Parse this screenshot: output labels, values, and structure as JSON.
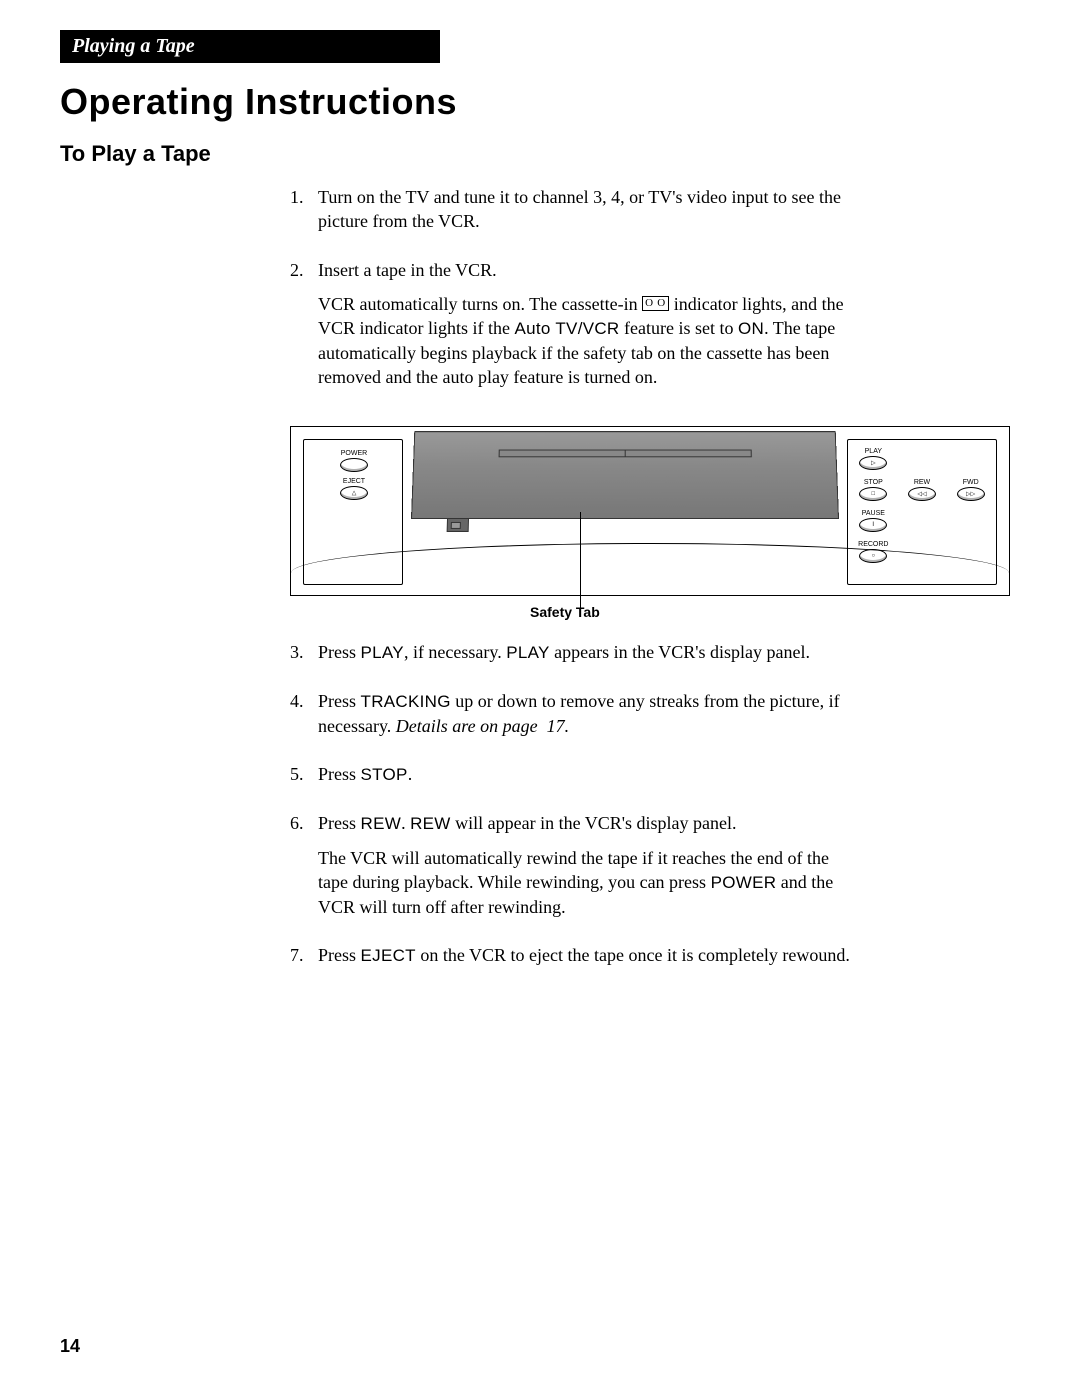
{
  "header": {
    "tab": "Playing a Tape",
    "title": "Operating Instructions",
    "subtitle": "To Play a Tape"
  },
  "steps": [
    {
      "num": "1.",
      "parts": [
        {
          "text": "Turn on the TV and tune it to channel 3, 4, or TV's video input to see the picture from the VCR."
        }
      ]
    },
    {
      "num": "2.",
      "parts": [
        {
          "text": "Insert a tape in the VCR."
        },
        {
          "html": "VCR automatically turns on.  The cassette-in <span class='cassette-icon' data-name='cassette-in-icon' data-interactable='false'>O O</span> indicator lights, and the VCR indicator lights if the <span class='sans'>Auto TV/VCR</span> feature is set to <span class='sans'>ON</span>.  The tape automatically begins playback if the safety tab on the cassette has been removed and the auto play feature is turned on."
        }
      ]
    },
    {
      "num": "3.",
      "parts": [
        {
          "html": "Press <span class='sans'>PLAY</span>, if necessary.  <span class='sans'>PLAY</span> appears in the VCR's display panel."
        }
      ]
    },
    {
      "num": "4.",
      "parts": [
        {
          "html": "Press <span class='sans'>TRACKING</span> up or down to remove any streaks from the picture, if necessary.  <span class='italic'>Details are on page  17.</span>"
        }
      ]
    },
    {
      "num": "5.",
      "parts": [
        {
          "html": "Press <span class='sans'>STOP</span>."
        }
      ]
    },
    {
      "num": "6.",
      "parts": [
        {
          "html": "Press <span class='sans'>REW</span>.  <span class='sans'>REW</span> will appear in the VCR's display panel."
        },
        {
          "html": "The VCR will automatically rewind the tape if it reaches the end of the tape during playback.  While rewinding, you can press <span class='sans'>POWER</span> and the VCR will turn off after rewinding."
        }
      ]
    },
    {
      "num": "7.",
      "parts": [
        {
          "html": "Press <span class='sans'>EJECT</span> on the VCR to eject the tape once it is completely rewound."
        }
      ]
    }
  ],
  "figure": {
    "left_buttons": [
      {
        "label": "POWER",
        "inner": ""
      },
      {
        "label": "EJECT",
        "inner": "△"
      }
    ],
    "right_buttons": [
      [
        {
          "label": "PLAY",
          "inner": "▷"
        },
        null,
        null
      ],
      [
        {
          "label": "STOP",
          "inner": "□"
        },
        {
          "label": "REW",
          "inner": "◁◁"
        },
        {
          "label": "FWD",
          "inner": "▷▷"
        }
      ],
      [
        {
          "label": "PAUSE",
          "inner": "‖"
        },
        null,
        null
      ],
      [
        {
          "label": "RECORD",
          "inner": "○"
        },
        null,
        null
      ]
    ],
    "safety_label": "Safety Tab"
  },
  "page_number": "14",
  "colors": {
    "tab_bg": "#000000",
    "tab_fg": "#ffffff",
    "body_bg": "#ffffff",
    "text": "#000000",
    "vcr_body_light": "#999999",
    "vcr_body_dark": "#777777"
  }
}
